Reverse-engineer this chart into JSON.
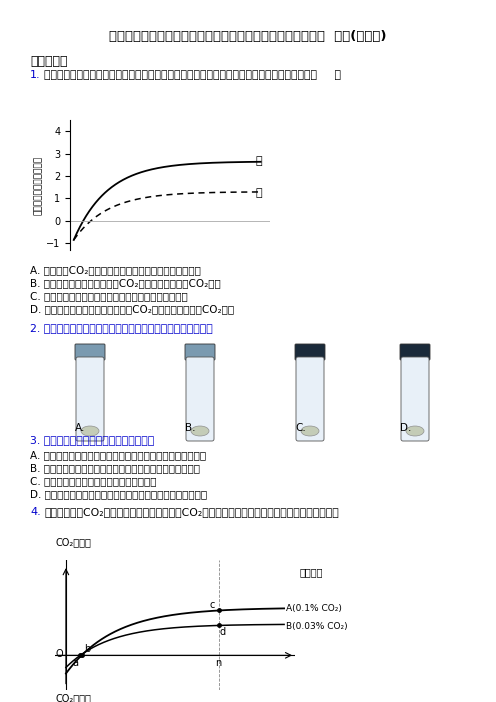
{
  "title": "四川省（天府大联考）高中人教版生物细胞的能量供应和利用  单元(含答案)",
  "section1": "一、选择题",
  "q1_num": "1.",
  "q1_body": "如图为某一植物在不同实验条件下测得的净光合速率，下列假设条件中能使图中结果成立的是（     ）",
  "q1_ylabel": "净光合速率（相对单位）",
  "q1_curve1_label": "甲",
  "q1_curve2_label": "乙",
  "q1_options": [
    "A. 横坐标是CO₂浓度，甲表示较高温度，乙表示较低温度",
    "B. 横坐标是温度，甲表示较高CO₂浓度，乙表示较低CO₂浓度",
    "C. 横坐标是光波长，甲表示较高温度，乙表示较低温度",
    "D. 横坐标是光照强度，甲表示较高CO₂浓度，乙表示较低CO₂浓度"
  ],
  "q2_text": "2. 纸层析法可分离光合色素，以下分离装置示意图中正确的是",
  "tube_labels": [
    "A.",
    "B.",
    "C.",
    "D."
  ],
  "tube_dark": [
    false,
    false,
    true,
    true
  ],
  "q3_text": "3. 下列关于真核细胞呼吸，正确的说法是",
  "q3_options": [
    "A. 无氧呼吸是不需氧的呼吸，因而其底物分解不属于氧化反应",
    "B. 水果贮藏在完全无氧的环境中，可将损失减小到最低程度",
    "C. 无氧呼吸的酶存在于细胞质基质和线粒体",
    "D. 有氧呼吸的酶存在于细胞质基质、线粒体内膜、线粒体基质"
  ],
  "q4_num": "4.",
  "q4_body": "下图表示不同CO₂浓度下，某植物吸收和释放CO₂的量随光照强度变化的曲线，有关说法正确的是",
  "q4_xlabel": "光照强度",
  "q4_ylabel_top": "CO₂吸收量",
  "q4_ylabel_bottom": "CO₂释放量",
  "q4_label_A": "A(0.1% CO₂)",
  "q4_label_B": "B(0.03% CO₂)",
  "q4_origin": "O",
  "q4_point_a": "a",
  "q4_point_b": "b",
  "q4_point_c": "c",
  "q4_point_d": "d",
  "q4_point_n": "n",
  "blue": "#0000cc",
  "black": "#000000",
  "gray": "#888888",
  "white": "#ffffff"
}
